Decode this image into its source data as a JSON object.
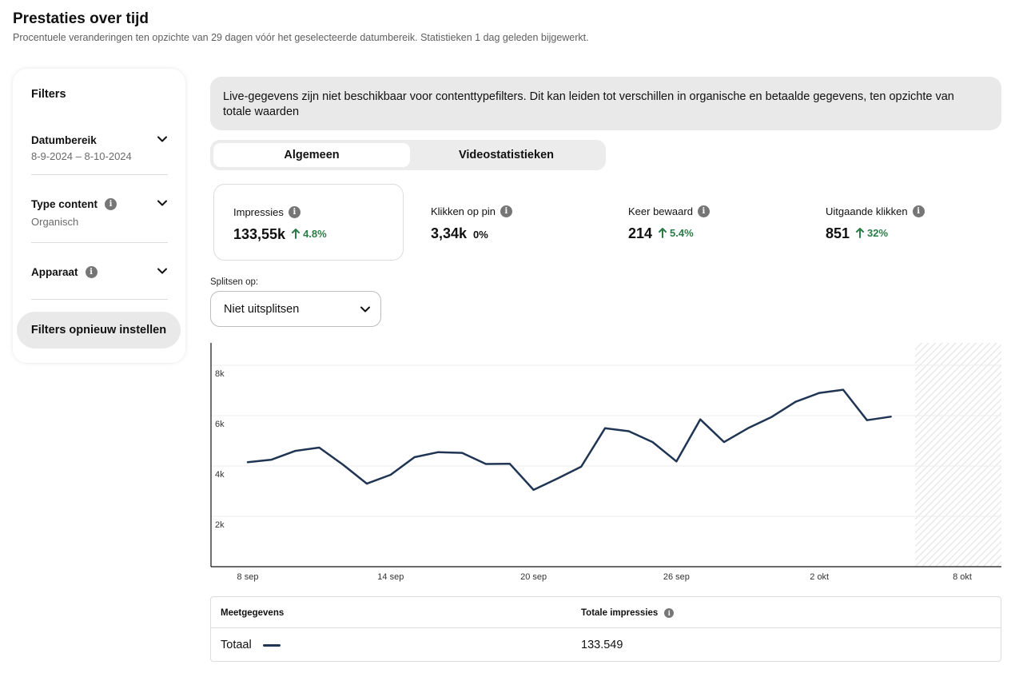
{
  "page": {
    "title": "Prestaties over tijd",
    "subtitle": "Procentuele veranderingen ten opzichte van 29 dagen vóór het geselecteerde datumbereik. Statistieken 1 dag geleden bijgewerkt."
  },
  "filters": {
    "title": "Filters",
    "date_range": {
      "label": "Datumbereik",
      "value": "8-9-2024 – 8-10-2024"
    },
    "content_type": {
      "label": "Type content",
      "value": "Organisch"
    },
    "device": {
      "label": "Apparaat"
    },
    "reset_label": "Filters opnieuw instellen"
  },
  "notice": "Live-gegevens zijn niet beschikbaar voor contenttypefilters. Dit kan leiden tot verschillen in organische en betaalde gegevens, ten opzichte van totale waarden",
  "tabs": [
    {
      "label": "Algemeen",
      "active": true
    },
    {
      "label": "Videostatistieken",
      "active": false
    }
  ],
  "metrics": [
    {
      "label": "Impressies",
      "value": "133,55k",
      "change": "4.8%",
      "trend": "up",
      "selected": true
    },
    {
      "label": "Klikken op pin",
      "value": "3,34k",
      "change": "0%",
      "trend": "none",
      "selected": false
    },
    {
      "label": "Keer bewaard",
      "value": "214",
      "change": "5.4%",
      "trend": "up",
      "selected": false
    },
    {
      "label": "Uitgaande klikken",
      "value": "851",
      "change": "32%",
      "trend": "up",
      "selected": false
    }
  ],
  "split": {
    "label": "Splitsen op:",
    "value": "Niet uitsplitsen"
  },
  "colors": {
    "line": "#1f3553",
    "positive": "#2a7d46",
    "panel": "#e9e9e9"
  },
  "icons": {
    "info": "info-icon",
    "chevron": "chevron-down-icon",
    "arrow": "arrow-up-icon"
  },
  "chart_data": {
    "type": "line",
    "x_tick_labels": [
      "8 sep",
      "14 sep",
      "20 sep",
      "26 sep",
      "2 okt",
      "8 okt"
    ],
    "y_tick_labels": [
      "2k",
      "4k",
      "6k",
      "8k"
    ],
    "ylim": [
      0,
      8000
    ],
    "grid": true,
    "series": [
      {
        "values": [
          4150,
          4250,
          4600,
          4730,
          4050,
          3300,
          3650,
          4350,
          4550,
          4520,
          4080,
          4090,
          3050,
          3500,
          3970,
          5500,
          5380,
          4950,
          4180,
          5850,
          4950,
          5500,
          5950,
          6550,
          6900,
          7030,
          5820,
          5960
        ]
      }
    ]
  },
  "table": {
    "headers": [
      "Meetgegevens",
      "Totale impressies"
    ],
    "rows": [
      {
        "metric": "Totaal",
        "value": "133.549"
      }
    ]
  }
}
